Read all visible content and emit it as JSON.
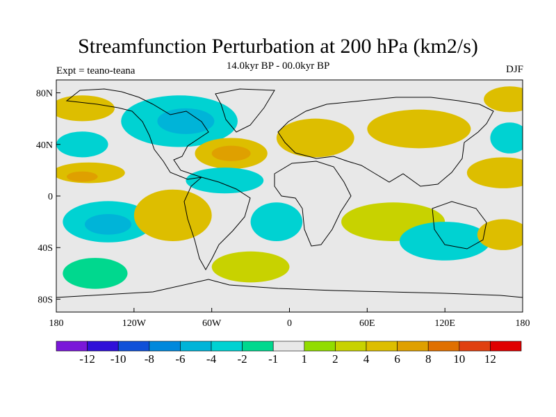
{
  "title": "Streamfunction Perturbation at 200 hPa (km2/s)",
  "subtitle": "14.0kyr BP - 00.0kyr BP",
  "experiment_label": "Expt = teano-teana",
  "season": "DJF",
  "y_axis_ticks": [
    "80N",
    "40N",
    "0",
    "40S",
    "80S"
  ],
  "x_axis_ticks": [
    "180",
    "120W",
    "60W",
    "0",
    "60E",
    "120E",
    "180"
  ],
  "colorbar": {
    "colors": [
      "#7a18d8",
      "#3010d8",
      "#1050d8",
      "#0088dc",
      "#00b4d8",
      "#00d2d2",
      "#00d88e",
      "#e8e8e8",
      "#92dc00",
      "#c8d200",
      "#ddbe00",
      "#dfa000",
      "#e07000",
      "#e04010",
      "#e00000"
    ],
    "labels": [
      "-12",
      "-10",
      "-8",
      "-6",
      "-4",
      "-2",
      "-1",
      "1",
      "2",
      "4",
      "6",
      "8",
      "10",
      "12"
    ]
  },
  "chart_data": {
    "type": "heatmap",
    "variable": "200 hPa streamfunction perturbation",
    "units": "km2/s",
    "x_range_deg": [
      -180,
      180
    ],
    "y_range_deg": [
      -90,
      90
    ],
    "regions": [
      {
        "lon": -160,
        "lat": 68,
        "rx": 25,
        "ry": 10,
        "level": 4
      },
      {
        "lon": -155,
        "lat": 68,
        "rx": 12,
        "ry": 6,
        "level": 5
      },
      {
        "lon": -160,
        "lat": 40,
        "rx": 20,
        "ry": 10,
        "level": -3
      },
      {
        "lon": -155,
        "lat": 18,
        "rx": 28,
        "ry": 8,
        "level": 5
      },
      {
        "lon": -160,
        "lat": 15,
        "rx": 12,
        "ry": 4,
        "level": 6
      },
      {
        "lon": -140,
        "lat": -20,
        "rx": 35,
        "ry": 16,
        "level": -3
      },
      {
        "lon": -140,
        "lat": -22,
        "rx": 18,
        "ry": 8,
        "level": -5
      },
      {
        "lon": -90,
        "lat": -15,
        "rx": 30,
        "ry": 20,
        "level": 4
      },
      {
        "lon": -150,
        "lat": -60,
        "rx": 25,
        "ry": 12,
        "level": -2
      },
      {
        "lon": -85,
        "lat": 58,
        "rx": 45,
        "ry": 20,
        "level": -3
      },
      {
        "lon": -80,
        "lat": 58,
        "rx": 22,
        "ry": 10,
        "level": -5
      },
      {
        "lon": -45,
        "lat": 33,
        "rx": 28,
        "ry": 12,
        "level": 4
      },
      {
        "lon": -45,
        "lat": 33,
        "rx": 15,
        "ry": 6,
        "level": 6
      },
      {
        "lon": -50,
        "lat": 12,
        "rx": 30,
        "ry": 10,
        "level": -3
      },
      {
        "lon": -10,
        "lat": -20,
        "rx": 20,
        "ry": 15,
        "level": -3
      },
      {
        "lon": -30,
        "lat": -55,
        "rx": 30,
        "ry": 12,
        "level": 3
      },
      {
        "lon": 20,
        "lat": 45,
        "rx": 30,
        "ry": 15,
        "level": 4
      },
      {
        "lon": 20,
        "lat": 45,
        "rx": 14,
        "ry": 7,
        "level": 5
      },
      {
        "lon": 100,
        "lat": 52,
        "rx": 40,
        "ry": 15,
        "level": 4
      },
      {
        "lon": 80,
        "lat": -20,
        "rx": 40,
        "ry": 15,
        "level": 2
      },
      {
        "lon": 120,
        "lat": -35,
        "rx": 35,
        "ry": 15,
        "level": -3
      },
      {
        "lon": 165,
        "lat": 18,
        "rx": 28,
        "ry": 12,
        "level": 4
      },
      {
        "lon": 165,
        "lat": 18,
        "rx": 15,
        "ry": 6,
        "level": 5
      },
      {
        "lon": 165,
        "lat": -30,
        "rx": 20,
        "ry": 12,
        "level": 4
      },
      {
        "lon": 170,
        "lat": 45,
        "rx": 15,
        "ry": 12,
        "level": -3
      },
      {
        "lon": 170,
        "lat": 75,
        "rx": 20,
        "ry": 10,
        "level": 4
      }
    ]
  }
}
